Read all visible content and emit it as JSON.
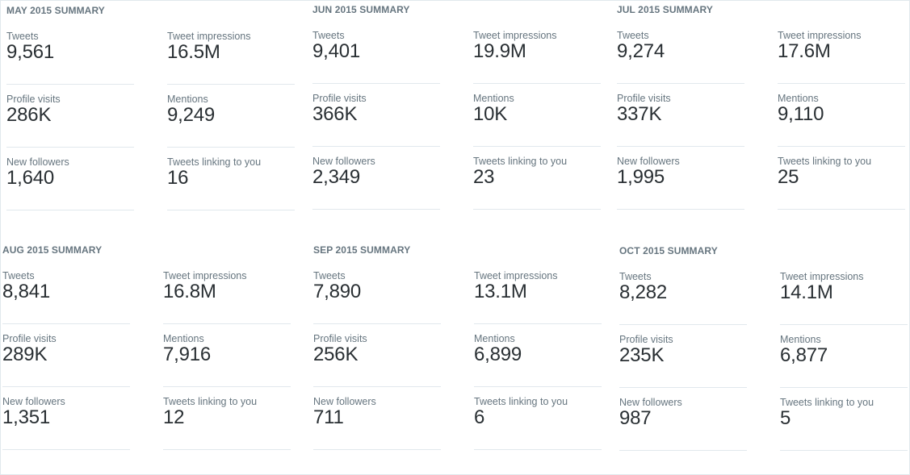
{
  "summaries": [
    {
      "title": "MAY 2015 SUMMARY",
      "metrics": [
        {
          "label": "Tweets",
          "value": "9,561"
        },
        {
          "label": "Tweet impressions",
          "value": "16.5M"
        },
        {
          "label": "Profile visits",
          "value": "286K"
        },
        {
          "label": "Mentions",
          "value": "9,249"
        },
        {
          "label": "New followers",
          "value": "1,640"
        },
        {
          "label": "Tweets linking to you",
          "value": "16"
        }
      ]
    },
    {
      "title": "JUN 2015 SUMMARY",
      "metrics": [
        {
          "label": "Tweets",
          "value": "9,401"
        },
        {
          "label": "Tweet impressions",
          "value": "19.9M"
        },
        {
          "label": "Profile visits",
          "value": "366K"
        },
        {
          "label": "Mentions",
          "value": "10K"
        },
        {
          "label": "New followers",
          "value": "2,349"
        },
        {
          "label": "Tweets linking to you",
          "value": "23"
        }
      ]
    },
    {
      "title": "JUL 2015 SUMMARY",
      "metrics": [
        {
          "label": "Tweets",
          "value": "9,274"
        },
        {
          "label": "Tweet impressions",
          "value": "17.6M"
        },
        {
          "label": "Profile visits",
          "value": "337K"
        },
        {
          "label": "Mentions",
          "value": "9,110"
        },
        {
          "label": "New followers",
          "value": "1,995"
        },
        {
          "label": "Tweets linking to you",
          "value": "25"
        }
      ]
    },
    {
      "title": "AUG 2015 SUMMARY",
      "metrics": [
        {
          "label": "Tweets",
          "value": "8,841"
        },
        {
          "label": "Tweet impressions",
          "value": "16.8M"
        },
        {
          "label": "Profile visits",
          "value": "289K"
        },
        {
          "label": "Mentions",
          "value": "7,916"
        },
        {
          "label": "New followers",
          "value": "1,351"
        },
        {
          "label": "Tweets linking to you",
          "value": "12"
        }
      ]
    },
    {
      "title": "SEP 2015 SUMMARY",
      "metrics": [
        {
          "label": "Tweets",
          "value": "7,890"
        },
        {
          "label": "Tweet impressions",
          "value": "13.1M"
        },
        {
          "label": "Profile visits",
          "value": "256K"
        },
        {
          "label": "Mentions",
          "value": "6,899"
        },
        {
          "label": "New followers",
          "value": "711"
        },
        {
          "label": "Tweets linking to you",
          "value": "6"
        }
      ]
    },
    {
      "title": "OCT 2015 SUMMARY",
      "metrics": [
        {
          "label": "Tweets",
          "value": "8,282"
        },
        {
          "label": "Tweet impressions",
          "value": "14.1M"
        },
        {
          "label": "Profile visits",
          "value": "235K"
        },
        {
          "label": "Mentions",
          "value": "6,877"
        },
        {
          "label": "New followers",
          "value": "987"
        },
        {
          "label": "Tweets linking to you",
          "value": "5"
        }
      ]
    }
  ]
}
